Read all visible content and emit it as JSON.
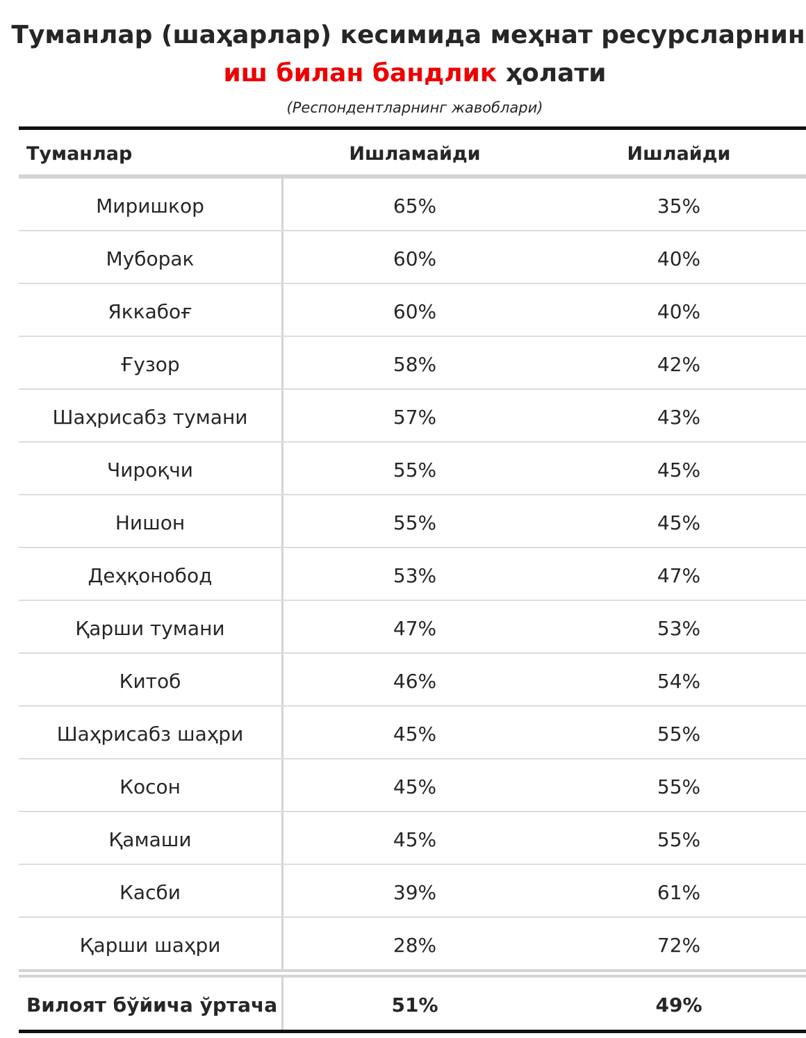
{
  "title": {
    "line1": "Туманлар (шаҳарлар) кесимида меҳнат ресурсларнинг",
    "line2_highlight": "иш билан бандлик",
    "line2_rest": " ҳолати",
    "highlight_color": "#ee0000"
  },
  "subtitle": "(Респондентларнинг жавоблари)",
  "table": {
    "headers": {
      "district": "Туманлар",
      "not_working": "Ишламайди",
      "working": "Ишлайди"
    },
    "rows": [
      {
        "district": "Миришкор",
        "not_working": "65%",
        "working": "35%"
      },
      {
        "district": "Муборак",
        "not_working": "60%",
        "working": "40%"
      },
      {
        "district": "Яккабоғ",
        "not_working": "60%",
        "working": "40%"
      },
      {
        "district": "Ғузор",
        "not_working": "58%",
        "working": "42%"
      },
      {
        "district": "Шаҳрисабз тумани",
        "not_working": "57%",
        "working": "43%"
      },
      {
        "district": "Чироқчи",
        "not_working": "55%",
        "working": "45%"
      },
      {
        "district": "Нишон",
        "not_working": "55%",
        "working": "45%"
      },
      {
        "district": "Деҳқонобод",
        "not_working": "53%",
        "working": "47%"
      },
      {
        "district": "Қарши тумани",
        "not_working": "47%",
        "working": "53%"
      },
      {
        "district": "Китоб",
        "not_working": "46%",
        "working": "54%"
      },
      {
        "district": "Шаҳрисабз шаҳри",
        "not_working": "45%",
        "working": "55%"
      },
      {
        "district": "Косон",
        "not_working": "45%",
        "working": "55%"
      },
      {
        "district": "Қамаши",
        "not_working": "45%",
        "working": "55%"
      },
      {
        "district": "Касби",
        "not_working": "39%",
        "working": "61%"
      },
      {
        "district": "Қарши шаҳри",
        "not_working": "28%",
        "working": "72%"
      }
    ],
    "total": {
      "label": "Вилоят бўйича ўртача",
      "not_working": "51%",
      "working": "49%"
    }
  }
}
